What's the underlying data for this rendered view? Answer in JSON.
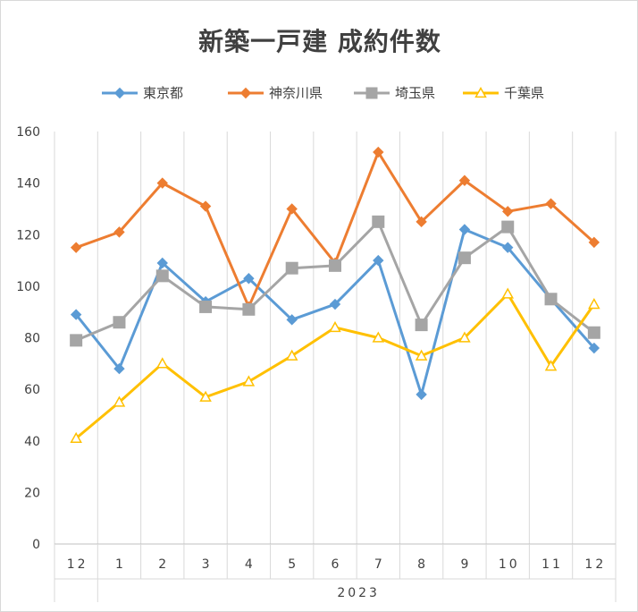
{
  "chart_data": {
    "type": "line",
    "title": "新築一戸建 成約件数",
    "categories": [
      "12",
      "1",
      "2",
      "3",
      "4",
      "5",
      "6",
      "7",
      "8",
      "9",
      "10",
      "11",
      "12"
    ],
    "group_label": "2023",
    "ylim": [
      0,
      160
    ],
    "yticks": [
      0,
      20,
      40,
      60,
      80,
      100,
      120,
      140,
      160
    ],
    "grid": "vertical category gridlines",
    "legend_position": "top",
    "series": [
      {
        "name": "東京都",
        "color": "#5b9bd5",
        "marker": "diamond",
        "values": [
          89,
          68,
          109,
          94,
          103,
          87,
          93,
          110,
          58,
          122,
          115,
          95,
          76
        ]
      },
      {
        "name": "神奈川県",
        "color": "#ed7d31",
        "marker": "diamond",
        "values": [
          115,
          121,
          140,
          131,
          92,
          130,
          109,
          152,
          125,
          141,
          129,
          132,
          117
        ]
      },
      {
        "name": "埼玉県",
        "color": "#a5a5a5",
        "marker": "square",
        "values": [
          79,
          86,
          104,
          92,
          91,
          107,
          108,
          125,
          85,
          111,
          123,
          95,
          82
        ]
      },
      {
        "name": "千葉県",
        "color": "#ffc000",
        "marker": "triangle",
        "values": [
          41,
          55,
          70,
          57,
          63,
          73,
          84,
          80,
          73,
          80,
          97,
          69,
          93
        ]
      }
    ]
  }
}
